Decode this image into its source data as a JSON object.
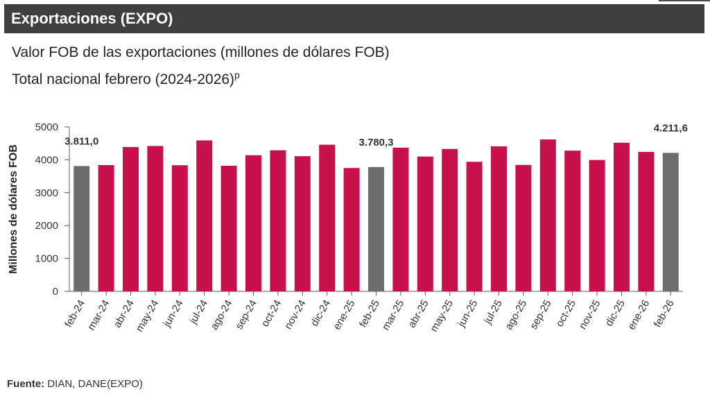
{
  "header": {
    "title": "Exportaciones (EXPO)"
  },
  "subtitle": {
    "line1": "Valor FOB de las exportaciones (millones de dólares FOB)",
    "line2": "Total nacional febrero (2024-2026)",
    "line2_superscript": "p"
  },
  "footer": {
    "label": "Fuente:",
    "text": "DIAN, DANE(EXPO)"
  },
  "chart_data": {
    "type": "bar",
    "title": "",
    "xlabel": "",
    "ylabel": "Millones de dólares FOB",
    "ylim": [
      0,
      5000
    ],
    "yticks": [
      0,
      1000,
      2000,
      3000,
      4000,
      5000
    ],
    "grid": false,
    "categories": [
      "feb-24",
      "mar-24",
      "abr-24",
      "may-24",
      "jun-24",
      "jul-24",
      "ago-24",
      "sep-24",
      "oct-24",
      "nov-24",
      "dic-24",
      "ene-25",
      "feb-25",
      "mar-25",
      "abr-25",
      "may-25",
      "jun-25",
      "jul-25",
      "ago-25",
      "sep-25",
      "oct-25",
      "nov-25",
      "dic-25",
      "ene-26",
      "feb-26"
    ],
    "values": [
      3811.0,
      3840,
      4390,
      4420,
      3835,
      4590,
      3820,
      4140,
      4290,
      4110,
      4460,
      3750,
      3780.3,
      4370,
      4100,
      4330,
      3940,
      4410,
      3845,
      4620,
      4280,
      3995,
      4520,
      4240,
      4211.6
    ],
    "highlight_categories": [
      "feb-24",
      "feb-25",
      "feb-26"
    ],
    "data_labels": [
      {
        "category": "feb-24",
        "text": "3.811,0"
      },
      {
        "category": "feb-25",
        "text": "3.780,3"
      },
      {
        "category": "feb-26",
        "text": "4.211,6"
      }
    ],
    "colors": {
      "highlight": "#6d6d6d",
      "default": "#c8104c",
      "axis": "#555555",
      "text": "#333333"
    }
  }
}
